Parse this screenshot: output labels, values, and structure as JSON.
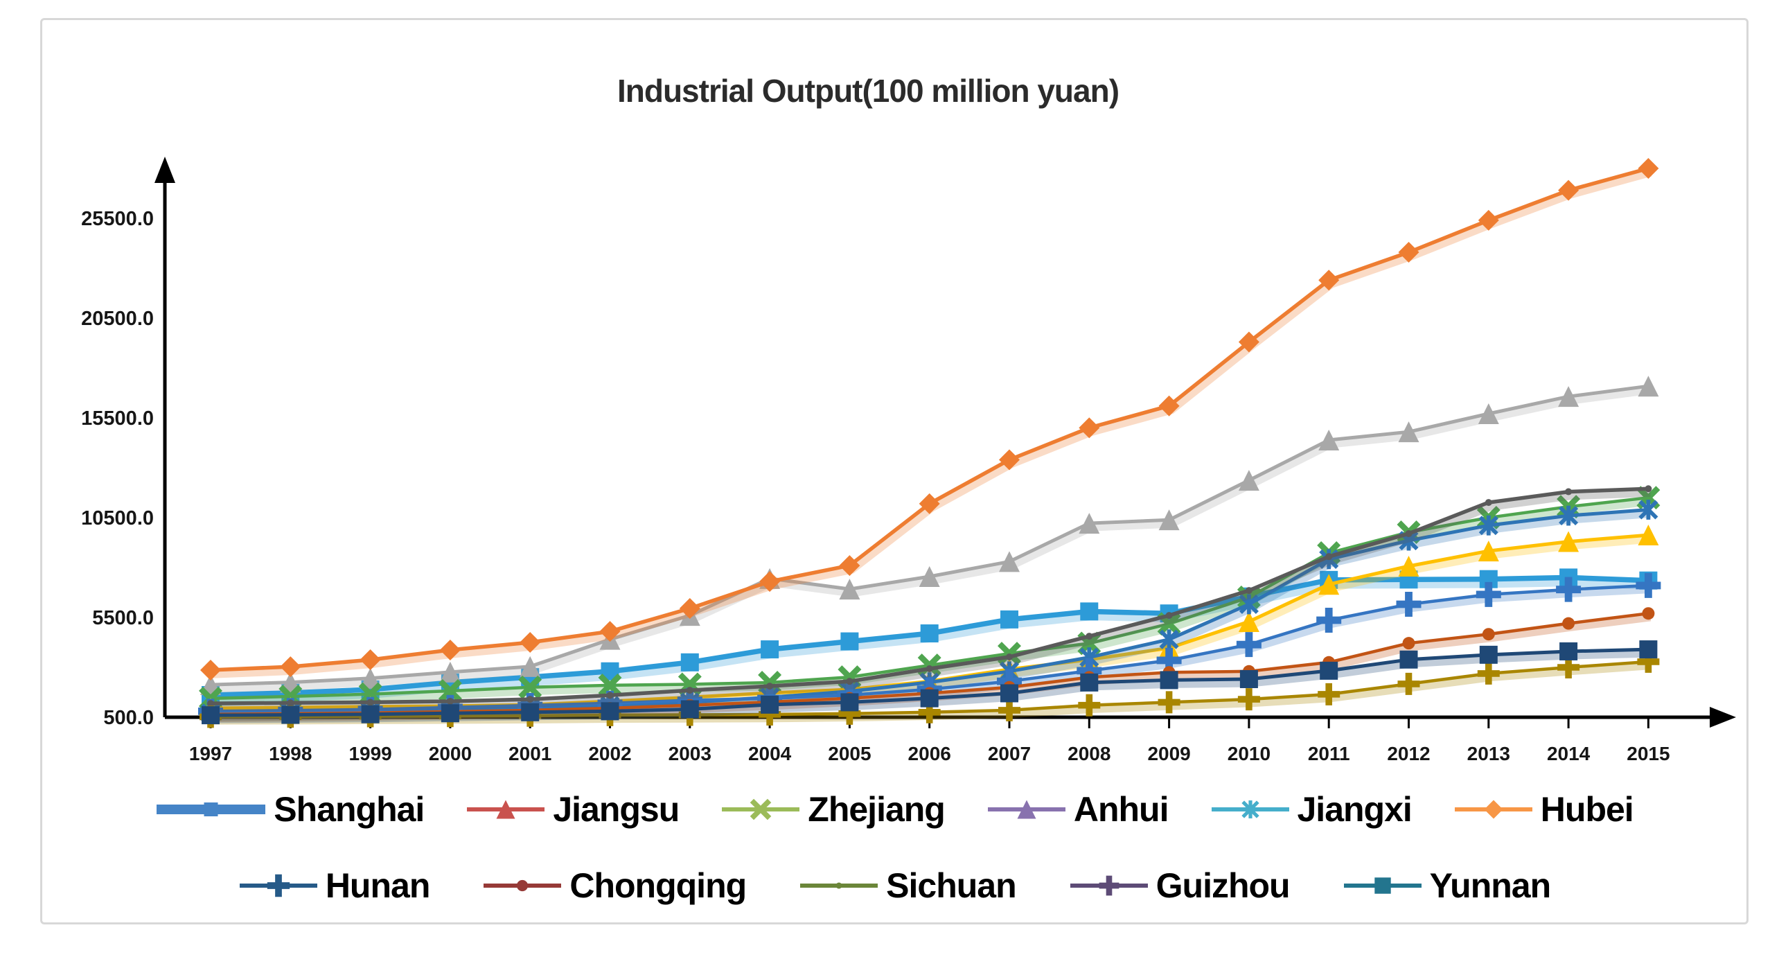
{
  "frame": {
    "border_color": "#d8d8d8",
    "background": "#ffffff"
  },
  "chart_data": {
    "type": "line",
    "title": "Industrial Output(100 million yuan)",
    "xlabel": "",
    "ylabel": "",
    "grid": false,
    "legend_position": "bottom",
    "ylim": [
      500,
      28600
    ],
    "x": [
      1997,
      1998,
      1999,
      2000,
      2001,
      2002,
      2003,
      2004,
      2005,
      2006,
      2007,
      2008,
      2009,
      2010,
      2011,
      2012,
      2013,
      2014,
      2015
    ],
    "y_ticks": [
      500,
      5500,
      10500,
      15500,
      20500,
      25500
    ],
    "y_tick_labels": [
      "500.0",
      "5500.0",
      "10500.0",
      "15500.0",
      "20500.0",
      "25500.0"
    ],
    "series": [
      {
        "name": "Shanghai",
        "marker": "square",
        "line_color": "#2d9bd8",
        "legend_color": "#4584c7",
        "line_width": 7.5,
        "marker_size": 26,
        "values": [
          1610,
          1720,
          1890,
          2240,
          2510,
          2800,
          3250,
          3900,
          4300,
          4700,
          5400,
          5800,
          5700,
          6550,
          7380,
          7400,
          7420,
          7500,
          7350
        ]
      },
      {
        "name": "Jiangsu",
        "marker": "triangle",
        "line_color": "#a8a8a8",
        "legend_color": "#c9524e",
        "line_width": 5,
        "marker_size": 30,
        "values": [
          2130,
          2250,
          2450,
          2760,
          3040,
          4400,
          5600,
          7450,
          6920,
          7550,
          8300,
          10220,
          10390,
          12370,
          14390,
          14800,
          15710,
          16570,
          17090
        ]
      },
      {
        "name": "Zhejiang",
        "marker": "x",
        "line_color": "#4fa54f",
        "legend_color": "#9bbb59",
        "line_width": 4.5,
        "marker_size": 28,
        "values": [
          1440,
          1540,
          1660,
          1820,
          2000,
          2100,
          2150,
          2235,
          2510,
          3100,
          3690,
          4200,
          5180,
          6510,
          8730,
          9770,
          10500,
          11050,
          11500
        ]
      },
      {
        "name": "Anhui",
        "marker": "triangle",
        "line_color": "#ffc000",
        "legend_color": "#8872ae",
        "line_width": 5,
        "marker_size": 30,
        "values": [
          950,
          990,
          1030,
          1060,
          1120,
          1300,
          1500,
          1715,
          1890,
          2300,
          2900,
          3390,
          3970,
          5290,
          7160,
          8070,
          8830,
          9300,
          9630
        ]
      },
      {
        "name": "Jiangxi",
        "marker": "asterisk",
        "line_color": "#2e74b5",
        "legend_color": "#45aecb",
        "line_width": 5,
        "marker_size": 24,
        "values": [
          700,
          740,
          790,
          870,
          960,
          1080,
          1250,
          1500,
          1800,
          2250,
          2800,
          3500,
          4400,
          6160,
          8420,
          9350,
          10110,
          10600,
          10900
        ]
      },
      {
        "name": "Hubei",
        "marker": "diamond",
        "line_color": "#ee7d31",
        "legend_color": "#f79646",
        "line_width": 5.5,
        "marker_size": 30,
        "values": [
          2860,
          3030,
          3380,
          3870,
          4250,
          4800,
          5950,
          7300,
          8100,
          11200,
          13400,
          15000,
          16100,
          19300,
          22400,
          23800,
          25400,
          26900,
          28000
        ]
      },
      {
        "name": "Hunan",
        "marker": "plus",
        "line_color": "#3575c2",
        "legend_color": "#265a88",
        "line_width": 4.5,
        "marker_size": 36,
        "values": [
          800,
          840,
          890,
          990,
          1090,
          1200,
          1350,
          1440,
          1610,
          1900,
          2300,
          2830,
          3350,
          4140,
          5360,
          6160,
          6650,
          6900,
          7100
        ]
      },
      {
        "name": "Chongqing",
        "marker": "dot",
        "line_color": "#c25415",
        "legend_color": "#963a37",
        "line_width": 4.5,
        "marker_size": 18,
        "values": [
          650,
          680,
          720,
          780,
          850,
          950,
          1100,
          1260,
          1450,
          1700,
          2000,
          2500,
          2750,
          2800,
          3250,
          4210,
          4660,
          5200,
          5700
        ]
      },
      {
        "name": "Sichuan",
        "marker": "dot",
        "line_color": "#5a5a5a",
        "legend_color": "#6b8639",
        "line_width": 5.5,
        "marker_size": 10,
        "values": [
          1190,
          1220,
          1250,
          1300,
          1400,
          1600,
          1850,
          2060,
          2300,
          2930,
          3520,
          4560,
          5600,
          6850,
          8550,
          9700,
          11260,
          11800,
          11950
        ]
      },
      {
        "name": "Guizhou",
        "marker": "plus",
        "line_color": "#a98600",
        "legend_color": "#5d4b76",
        "line_width": 4.5,
        "marker_size": 32,
        "values": [
          520,
          530,
          550,
          560,
          580,
          610,
          620,
          640,
          680,
          750,
          850,
          1100,
          1250,
          1400,
          1650,
          2170,
          2690,
          3000,
          3280
        ]
      },
      {
        "name": "Yunnan",
        "marker": "square",
        "line_color": "#1f4876",
        "legend_color": "#23758e",
        "line_width": 5,
        "marker_size": 26,
        "values": [
          600,
          620,
          650,
          700,
          750,
          800,
          900,
          1130,
          1250,
          1450,
          1700,
          2240,
          2360,
          2410,
          2830,
          3390,
          3630,
          3800,
          3900
        ]
      }
    ]
  },
  "legend": {
    "rows": [
      [
        "Shanghai",
        "Jiangsu",
        "Zhejiang",
        "Anhui",
        "Jiangxi",
        "Hubei"
      ],
      [
        "Hunan",
        "Chongqing",
        "Sichuan",
        "Guizhou",
        "Yunnan"
      ]
    ]
  }
}
